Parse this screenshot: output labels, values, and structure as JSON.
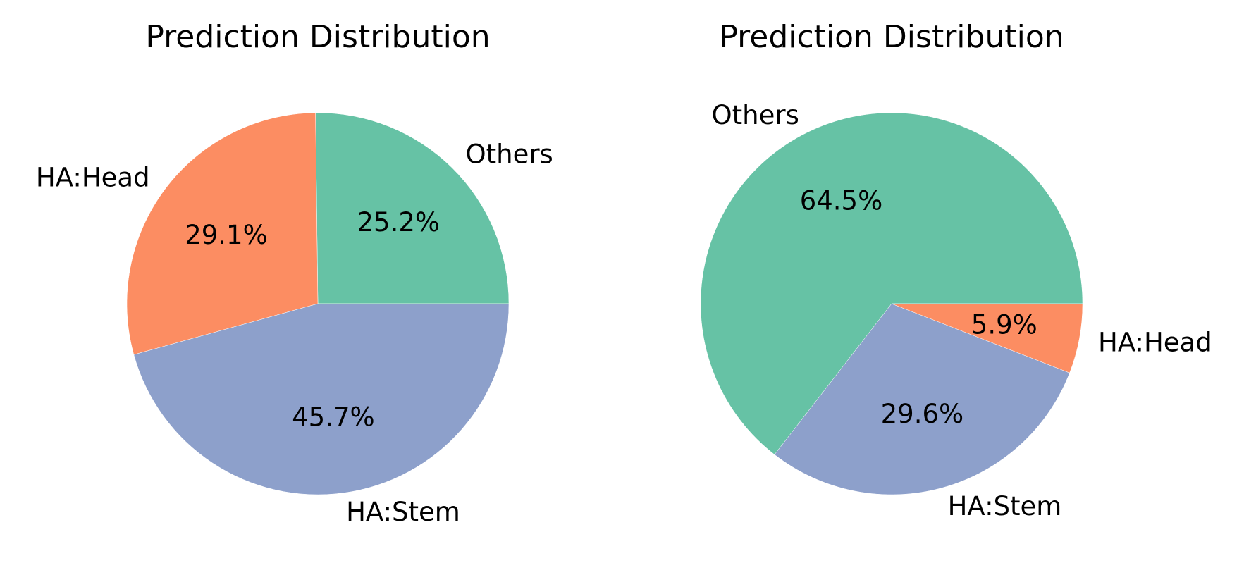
{
  "colors": {
    "others": "#66c2a5",
    "ha_head": "#fc8d62",
    "ha_stem": "#8da0cb",
    "background": "#ffffff"
  },
  "chart_data": [
    {
      "type": "pie",
      "title": "Prediction Distribution",
      "start_angle_deg": 0,
      "direction": "counterclockwise",
      "slices": [
        {
          "label": "Others",
          "value": 25.2,
          "pct_label": "25.2%",
          "color": "#66c2a5"
        },
        {
          "label": "HA:Head",
          "value": 29.1,
          "pct_label": "29.1%",
          "color": "#fc8d62"
        },
        {
          "label": "HA:Stem",
          "value": 45.7,
          "pct_label": "45.7%",
          "color": "#8da0cb"
        }
      ]
    },
    {
      "type": "pie",
      "title": "Prediction Distribution",
      "start_angle_deg": 0,
      "direction": "counterclockwise",
      "slices": [
        {
          "label": "Others",
          "value": 64.5,
          "pct_label": "64.5%",
          "color": "#66c2a5"
        },
        {
          "label": "HA:Stem",
          "value": 29.6,
          "pct_label": "29.6%",
          "color": "#8da0cb"
        },
        {
          "label": "HA:Head",
          "value": 5.9,
          "pct_label": "5.9%",
          "color": "#fc8d62"
        }
      ]
    }
  ]
}
